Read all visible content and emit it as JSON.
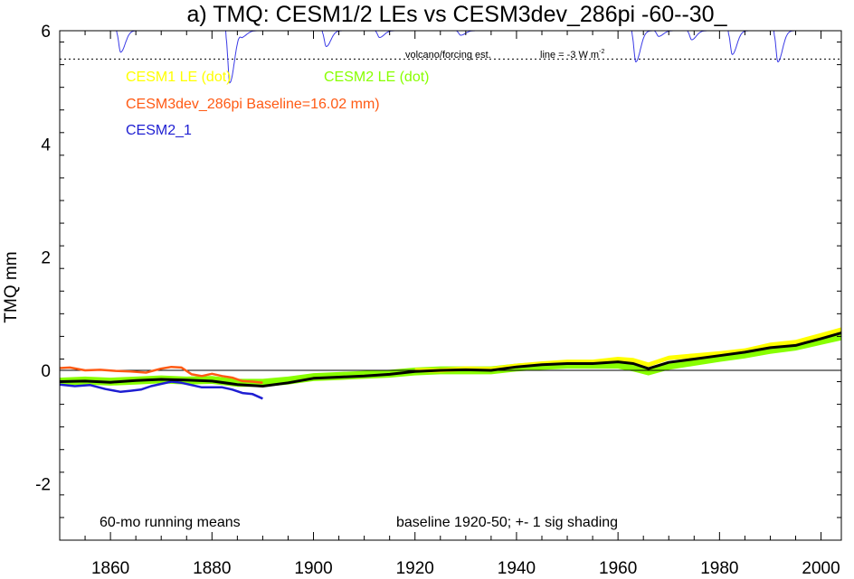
{
  "chart_data": {
    "type": "line",
    "title": "a) TMQ: CESM1/2 LEs vs CESM3dev_286pi -60--30_",
    "ylabel": "TMQ mm",
    "xlabel": "",
    "xlim": [
      1850,
      2004
    ],
    "ylim": [
      -3,
      6
    ],
    "x_ticks": [
      1860,
      1880,
      1900,
      1920,
      1940,
      1960,
      1980,
      2000
    ],
    "y_ticks": [
      -2,
      0,
      2,
      4,
      6
    ],
    "x_tick_labels": [
      "1860",
      "1880",
      "1900",
      "1920",
      "1940",
      "1960",
      "1980",
      "2000"
    ],
    "y_tick_labels": [
      "-2",
      "0",
      "2",
      "4",
      "6"
    ],
    "legend": {
      "cesm1_le": "CESM1 LE (dot)",
      "cesm2_le": "CESM2 LE (dot)",
      "cesm3dev": "CESM3dev_286pi Baseline=16.02 mm)",
      "cesm2_1": "CESM2_1"
    },
    "annotations": {
      "running_means": "60-mo running means",
      "baseline_note": "baseline 1920-50; +- 1 sig shading",
      "volcano_label": "volcano/forcing est.",
      "forcing_line_label": "line = -3 W m",
      "forcing_line_exp": "-2"
    },
    "colors": {
      "cesm1": "#ffff00",
      "cesm2": "#88ff00",
      "cesm3dev": "#ff5a14",
      "cesm2_1": "#1e1ed2",
      "ensemble_mean": "#000000",
      "volcano": "#3a3ae6"
    },
    "series": [
      {
        "name": "CESM1 LE (dot)",
        "style": "shading",
        "x": [
          1920,
          1925,
          1930,
          1935,
          1940,
          1945,
          1950,
          1955,
          1960,
          1963,
          1966,
          1970,
          1975,
          1980,
          1985,
          1990,
          1995,
          2000,
          2004
        ],
        "y": [
          0.0,
          0.0,
          0.03,
          0.02,
          0.08,
          0.12,
          0.15,
          0.15,
          0.2,
          0.18,
          0.1,
          0.22,
          0.26,
          0.3,
          0.35,
          0.45,
          0.5,
          0.62,
          0.72
        ],
        "spread": 0.04
      },
      {
        "name": "CESM2 LE (dot)",
        "style": "shading",
        "x": [
          1850,
          1855,
          1860,
          1865,
          1870,
          1875,
          1880,
          1885,
          1890,
          1895,
          1900,
          1905,
          1910,
          1915,
          1920,
          1925,
          1930,
          1935,
          1940,
          1945,
          1950,
          1955,
          1960,
          1963,
          1966,
          1970,
          1975,
          1980,
          1985,
          1990,
          1995,
          2000,
          2004
        ],
        "y": [
          -0.2,
          -0.18,
          -0.2,
          -0.18,
          -0.16,
          -0.18,
          -0.17,
          -0.22,
          -0.22,
          -0.18,
          -0.12,
          -0.1,
          -0.08,
          -0.06,
          -0.02,
          0.0,
          0.0,
          0.0,
          0.05,
          0.08,
          0.1,
          0.1,
          0.1,
          0.05,
          -0.02,
          0.08,
          0.15,
          0.22,
          0.28,
          0.36,
          0.42,
          0.52,
          0.6
        ],
        "spread": 0.07
      },
      {
        "name": "CESM3dev_286pi Baseline=16.02 mm)",
        "style": "line",
        "x": [
          1850,
          1852,
          1855,
          1858,
          1861,
          1864,
          1867,
          1870,
          1872,
          1874,
          1876,
          1878,
          1880,
          1882,
          1884,
          1886,
          1888,
          1890
        ],
        "y": [
          0.04,
          0.05,
          0.0,
          0.01,
          -0.01,
          -0.02,
          -0.04,
          0.03,
          0.06,
          0.05,
          -0.07,
          -0.1,
          -0.06,
          -0.1,
          -0.13,
          -0.19,
          -0.2,
          -0.22
        ]
      },
      {
        "name": "CESM2_1",
        "style": "line",
        "x": [
          1850,
          1853,
          1856,
          1859,
          1862,
          1864,
          1866,
          1868,
          1870,
          1872,
          1874,
          1876,
          1878,
          1880,
          1882,
          1884,
          1886,
          1888,
          1890
        ],
        "y": [
          -0.25,
          -0.28,
          -0.26,
          -0.33,
          -0.38,
          -0.36,
          -0.34,
          -0.28,
          -0.24,
          -0.2,
          -0.22,
          -0.26,
          -0.3,
          -0.3,
          -0.3,
          -0.34,
          -0.4,
          -0.42,
          -0.5
        ]
      },
      {
        "name": "ensemble mean",
        "style": "line",
        "x": [
          1850,
          1855,
          1860,
          1865,
          1870,
          1875,
          1880,
          1885,
          1890,
          1895,
          1900,
          1905,
          1910,
          1915,
          1920,
          1925,
          1930,
          1935,
          1940,
          1945,
          1950,
          1955,
          1960,
          1963,
          1966,
          1970,
          1975,
          1980,
          1985,
          1990,
          1995,
          2000,
          2004
        ],
        "y": [
          -0.2,
          -0.19,
          -0.21,
          -0.18,
          -0.16,
          -0.17,
          -0.19,
          -0.25,
          -0.28,
          -0.22,
          -0.14,
          -0.12,
          -0.1,
          -0.07,
          -0.02,
          0.0,
          0.01,
          0.0,
          0.06,
          0.1,
          0.12,
          0.12,
          0.15,
          0.12,
          0.03,
          0.14,
          0.2,
          0.26,
          0.32,
          0.4,
          0.44,
          0.56,
          0.66
        ]
      }
    ],
    "volcano_forcing": {
      "baseline": 6.0,
      "threshold": 5.5,
      "events": [
        {
          "year": 1862,
          "depth": 0.38
        },
        {
          "year": 1883.5,
          "depth": 0.92
        },
        {
          "year": 1886,
          "depth": 0.1
        },
        {
          "year": 1902.5,
          "depth": 0.28
        },
        {
          "year": 1913,
          "depth": 0.12
        },
        {
          "year": 1929,
          "depth": 0.08
        },
        {
          "year": 1963.5,
          "depth": 0.55
        },
        {
          "year": 1968,
          "depth": 0.1
        },
        {
          "year": 1974.5,
          "depth": 0.16
        },
        {
          "year": 1982.5,
          "depth": 0.42
        },
        {
          "year": 1991.5,
          "depth": 0.55
        }
      ]
    }
  }
}
